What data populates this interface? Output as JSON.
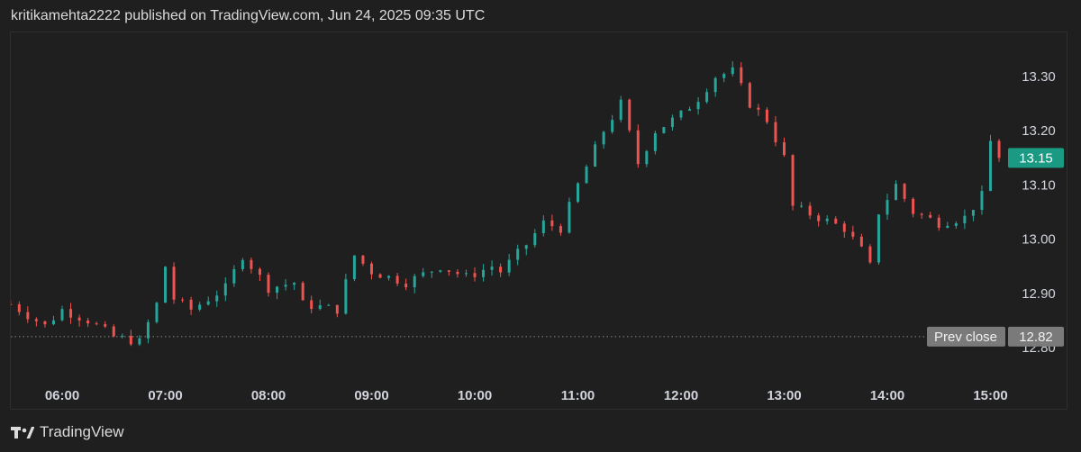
{
  "header": {
    "text": "kritikamehta2222 published on TradingView.com, Jun 24, 2025 09:35 UTC"
  },
  "footer": {
    "brand": "TradingView"
  },
  "colors": {
    "up": "#26a69a",
    "down": "#ef5350",
    "background": "#1f1f1f",
    "text": "#d1d4dc",
    "last_badge": "#1a9a82",
    "prev_badge": "#7a7a7a"
  },
  "chart_data": {
    "type": "candlestick",
    "interval_minutes": 5,
    "x_tick_labels": [
      "06:00",
      "07:00",
      "08:00",
      "09:00",
      "10:00",
      "11:00",
      "12:00",
      "13:00",
      "14:00",
      "15:00"
    ],
    "y_tick_labels": [
      "13.30",
      "13.20",
      "13.10",
      "13.00",
      "12.90",
      "12.80"
    ],
    "ylim": [
      12.77,
      13.34
    ],
    "close_series": [
      {
        "time": "05:30",
        "price": 12.88
      },
      {
        "time": "05:50",
        "price": 12.84
      },
      {
        "time": "06:00",
        "price": 12.87
      },
      {
        "time": "06:15",
        "price": 12.85
      },
      {
        "time": "06:30",
        "price": 12.82
      },
      {
        "time": "06:45",
        "price": 12.81
      },
      {
        "time": "06:55",
        "price": 12.88
      },
      {
        "time": "07:00",
        "price": 12.95
      },
      {
        "time": "07:05",
        "price": 12.89
      },
      {
        "time": "07:15",
        "price": 12.87
      },
      {
        "time": "07:30",
        "price": 12.9
      },
      {
        "time": "07:35",
        "price": 12.91
      },
      {
        "time": "07:45",
        "price": 12.97
      },
      {
        "time": "08:00",
        "price": 12.91
      },
      {
        "time": "08:15",
        "price": 12.92
      },
      {
        "time": "08:20",
        "price": 12.88
      },
      {
        "time": "08:40",
        "price": 12.87
      },
      {
        "time": "08:50",
        "price": 12.97
      },
      {
        "time": "09:00",
        "price": 12.94
      },
      {
        "time": "09:20",
        "price": 12.92
      },
      {
        "time": "09:40",
        "price": 12.95
      },
      {
        "time": "09:55",
        "price": 12.93
      },
      {
        "time": "10:10",
        "price": 12.95
      },
      {
        "time": "10:15",
        "price": 12.94
      },
      {
        "time": "10:30",
        "price": 12.99
      },
      {
        "time": "10:40",
        "price": 13.03
      },
      {
        "time": "10:50",
        "price": 13.02
      },
      {
        "time": "11:00",
        "price": 13.1
      },
      {
        "time": "11:15",
        "price": 13.2
      },
      {
        "time": "11:25",
        "price": 13.25
      },
      {
        "time": "11:35",
        "price": 13.14
      },
      {
        "time": "11:45",
        "price": 13.2
      },
      {
        "time": "12:00",
        "price": 13.23
      },
      {
        "time": "12:10",
        "price": 13.26
      },
      {
        "time": "12:20",
        "price": 13.3
      },
      {
        "time": "12:30",
        "price": 13.31
      },
      {
        "time": "12:40",
        "price": 13.25
      },
      {
        "time": "12:50",
        "price": 13.22
      },
      {
        "time": "13:00",
        "price": 13.15
      },
      {
        "time": "13:05",
        "price": 13.06
      },
      {
        "time": "13:20",
        "price": 13.04
      },
      {
        "time": "13:35",
        "price": 13.02
      },
      {
        "time": "13:45",
        "price": 12.98
      },
      {
        "time": "13:50",
        "price": 12.95
      },
      {
        "time": "13:55",
        "price": 13.05
      },
      {
        "time": "14:05",
        "price": 13.1
      },
      {
        "time": "14:15",
        "price": 13.05
      },
      {
        "time": "14:30",
        "price": 13.03
      },
      {
        "time": "14:45",
        "price": 13.04
      },
      {
        "time": "14:55",
        "price": 13.08
      },
      {
        "time": "15:00",
        "price": 13.18
      },
      {
        "time": "15:05",
        "price": 13.15
      }
    ],
    "last_price": {
      "label": "",
      "value": "13.15"
    },
    "prev_close": {
      "label": "Prev close",
      "value": "12.82",
      "level": 12.82
    },
    "grid": false
  }
}
